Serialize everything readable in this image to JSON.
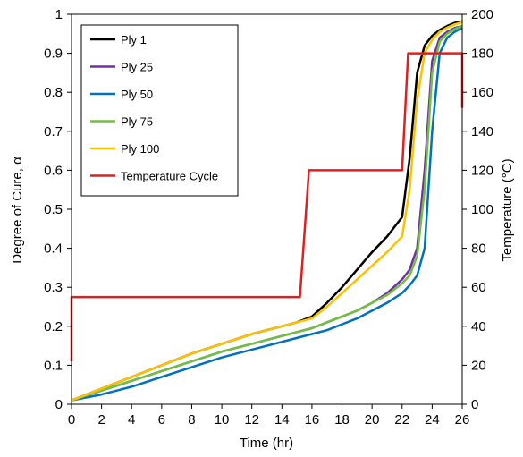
{
  "chart_data": {
    "type": "line",
    "title": "",
    "xlabel": "Time (hr)",
    "ylabel": "Degree of Cure, α",
    "y2label": "Temperature (°C)",
    "xlim": [
      0,
      26
    ],
    "ylim": [
      0,
      1
    ],
    "y2lim": [
      0,
      200
    ],
    "xticks": [
      "0",
      "2",
      "4",
      "6",
      "8",
      "10",
      "12",
      "14",
      "16",
      "18",
      "20",
      "22",
      "24",
      "26"
    ],
    "yticks": [
      "0",
      "0.1",
      "0.2",
      "0.3",
      "0.4",
      "0.5",
      "0.6",
      "0.7",
      "0.8",
      "0.9",
      "1"
    ],
    "y2ticks": [
      "0",
      "20",
      "40",
      "60",
      "80",
      "100",
      "120",
      "140",
      "160",
      "180",
      "200"
    ],
    "grid": false,
    "legend_position": "top-left",
    "series": [
      {
        "name": "Ply 1",
        "color": "#000000",
        "axis": "left",
        "x": [
          0,
          2,
          4,
          6,
          8,
          10,
          12,
          14,
          15,
          16,
          17,
          18,
          19,
          20,
          21,
          22,
          22.5,
          23,
          23.5,
          24,
          24.5,
          25,
          25.5,
          26
        ],
        "y": [
          0.01,
          0.04,
          0.07,
          0.1,
          0.13,
          0.155,
          0.18,
          0.2,
          0.21,
          0.225,
          0.26,
          0.3,
          0.345,
          0.39,
          0.43,
          0.48,
          0.63,
          0.85,
          0.92,
          0.945,
          0.96,
          0.97,
          0.978,
          0.982
        ]
      },
      {
        "name": "Ply 25",
        "color": "#7030A0",
        "axis": "left",
        "x": [
          0,
          2,
          4,
          6,
          8,
          10,
          12,
          14,
          15,
          16,
          17,
          18,
          19,
          20,
          21,
          22,
          22.5,
          23,
          23.5,
          24,
          24.5,
          25,
          25.5,
          26
        ],
        "y": [
          0.01,
          0.035,
          0.06,
          0.085,
          0.11,
          0.135,
          0.155,
          0.175,
          0.185,
          0.195,
          0.21,
          0.225,
          0.24,
          0.26,
          0.285,
          0.32,
          0.345,
          0.4,
          0.6,
          0.88,
          0.94,
          0.955,
          0.965,
          0.97
        ]
      },
      {
        "name": "Ply 50",
        "color": "#0070C0",
        "axis": "left",
        "x": [
          0,
          2,
          4,
          6,
          8,
          10,
          12,
          14,
          15,
          16,
          17,
          18,
          19,
          20,
          21,
          22,
          22.5,
          23,
          23.5,
          24,
          24.5,
          25,
          25.5,
          26
        ],
        "y": [
          0.01,
          0.025,
          0.045,
          0.07,
          0.095,
          0.12,
          0.14,
          0.16,
          0.17,
          0.18,
          0.19,
          0.205,
          0.22,
          0.24,
          0.26,
          0.285,
          0.305,
          0.33,
          0.4,
          0.7,
          0.9,
          0.94,
          0.955,
          0.965
        ]
      },
      {
        "name": "Ply 75",
        "color": "#70C040",
        "axis": "left",
        "x": [
          0,
          2,
          4,
          6,
          8,
          10,
          12,
          14,
          15,
          16,
          17,
          18,
          19,
          20,
          21,
          22,
          22.5,
          23,
          23.5,
          24,
          24.5,
          25,
          25.5,
          26
        ],
        "y": [
          0.01,
          0.035,
          0.06,
          0.085,
          0.11,
          0.135,
          0.155,
          0.175,
          0.185,
          0.195,
          0.21,
          0.225,
          0.24,
          0.26,
          0.28,
          0.31,
          0.33,
          0.38,
          0.55,
          0.85,
          0.93,
          0.95,
          0.962,
          0.97
        ]
      },
      {
        "name": "Ply 100",
        "color": "#FFC000",
        "axis": "left",
        "x": [
          0,
          2,
          4,
          6,
          8,
          10,
          12,
          14,
          15,
          16,
          17,
          18,
          19,
          20,
          21,
          22,
          22.5,
          23,
          23.5,
          24,
          24.5,
          25,
          25.5,
          26
        ],
        "y": [
          0.01,
          0.04,
          0.07,
          0.1,
          0.13,
          0.155,
          0.18,
          0.2,
          0.21,
          0.22,
          0.25,
          0.285,
          0.32,
          0.355,
          0.39,
          0.43,
          0.55,
          0.78,
          0.9,
          0.935,
          0.955,
          0.966,
          0.974,
          0.98
        ]
      },
      {
        "name": "Temperature Cycle",
        "color": "#E02020",
        "axis": "right",
        "x": [
          0,
          0,
          15.2,
          15.8,
          22,
          22.4,
          26,
          26
        ],
        "y": [
          22,
          55,
          55,
          120,
          120,
          180,
          180,
          152
        ]
      }
    ]
  }
}
